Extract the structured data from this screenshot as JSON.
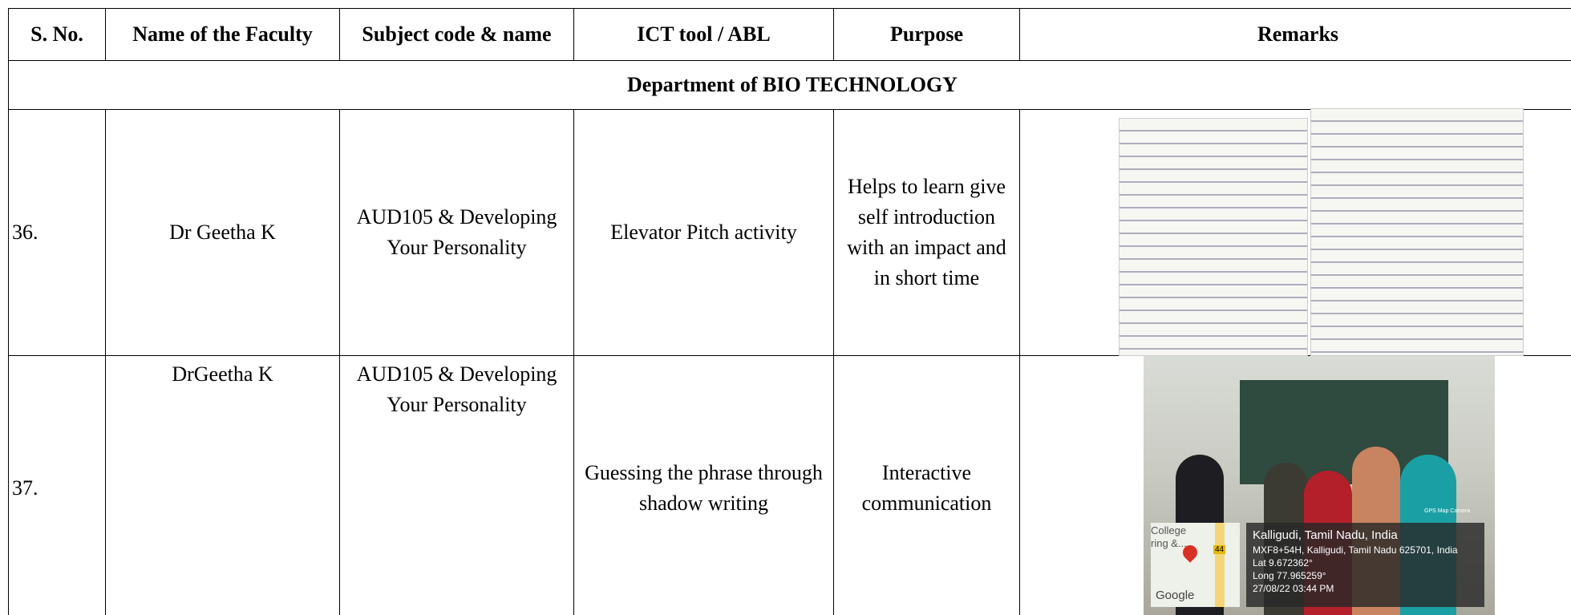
{
  "table": {
    "header": [
      "S. No.",
      "Name of the Faculty",
      "Subject code &  name",
      "ICT tool / ABL",
      "Purpose",
      "Remarks"
    ],
    "department": "Department of  BIO TECHNOLOGY",
    "rows": [
      [
        "36.",
        "Dr Geetha K",
        "AUD105 & Developing Your Personality",
        "Elevator Pitch activity",
        "Helps to learn give self introduction with an impact and in short time"
      ],
      [
        "37.",
        "DrGeetha K",
        "AUD105 & Developing Your Personality",
        "Guessing the phrase through shadow writing",
        "Interactive communication"
      ]
    ]
  },
  "photo_overlay": {
    "map_labels": [
      "College",
      "ring &..."
    ],
    "map_badge": "44",
    "map_brand": "Google",
    "camera": "GPS Map Camera",
    "location": "Kalligudi, Tamil Nadu, India",
    "address": "MXF8+54H, Kalligudi, Tamil Nadu 625701, India",
    "lat": "Lat 9.672362°",
    "long": "Long 77.965259°",
    "datetime": "27/08/22 03:44 PM"
  }
}
